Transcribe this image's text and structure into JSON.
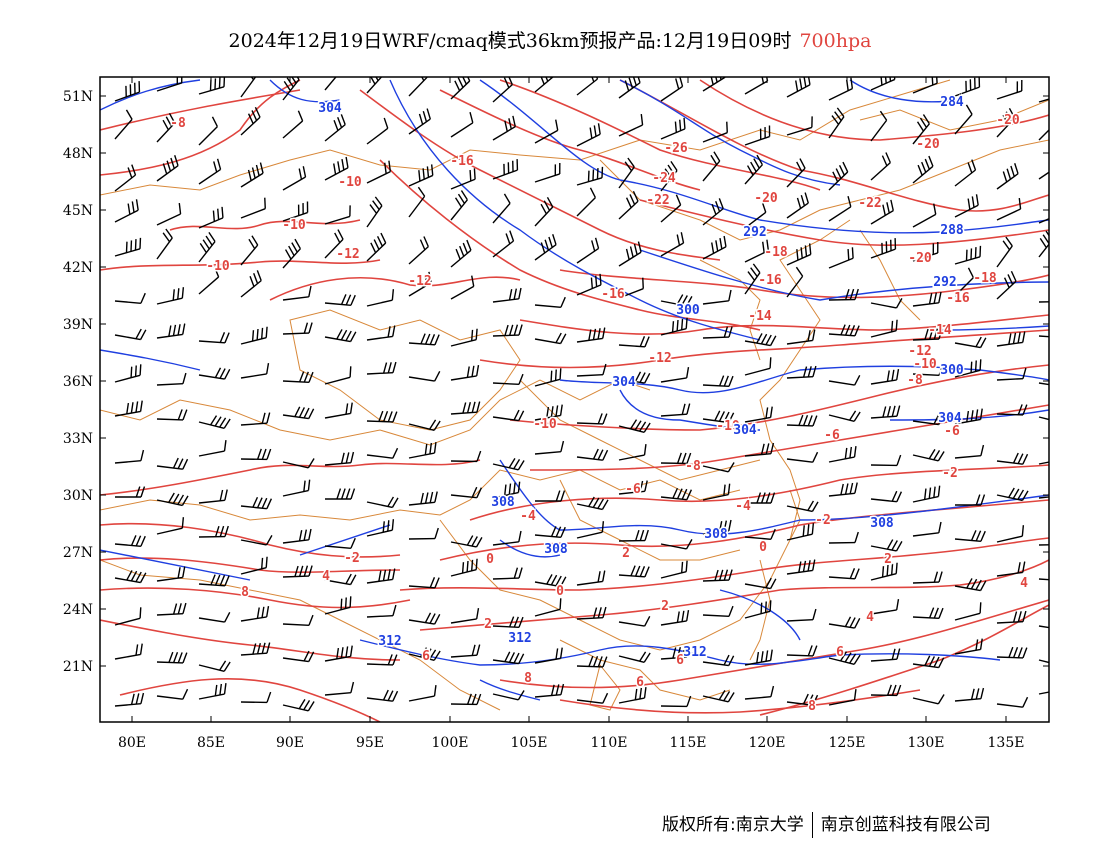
{
  "title": {
    "text": "2024年12月19日WRF/cmaq模式36km预报产品:12月19日09时",
    "level": "700hpa",
    "level_color": "#e0453f"
  },
  "axes": {
    "lon_labels": [
      "80E",
      "85E",
      "90E",
      "95E",
      "100E",
      "105E",
      "110E",
      "115E",
      "120E",
      "125E",
      "130E",
      "135E"
    ],
    "lat_labels": [
      "51N",
      "48N",
      "45N",
      "42N",
      "39N",
      "36N",
      "33N",
      "30N",
      "27N",
      "24N",
      "21N"
    ]
  },
  "colors": {
    "temperature": "#e0453f",
    "height": "#1f3fe0",
    "border": "#d8883a",
    "wind": "#000000"
  },
  "temperature_labels": [
    "-8",
    "-10",
    "-10",
    "-10",
    "-12",
    "-12",
    "-16",
    "-16",
    "-20",
    "-20",
    "-20",
    "-22",
    "-22",
    "-24",
    "-26",
    "-20",
    "-18",
    "-18",
    "-16",
    "-16",
    "-14",
    "-14",
    "-12",
    "-12",
    "-10",
    "-10",
    "-10",
    "-8",
    "-8",
    "-6",
    "-6",
    "-6",
    "-4",
    "-4",
    "-2",
    "-2",
    "-2",
    "0",
    "0",
    "0",
    "2",
    "2",
    "2",
    "2",
    "4",
    "4",
    "4",
    "6",
    "6",
    "6",
    "6",
    "8",
    "8",
    "8"
  ],
  "height_labels": [
    "304",
    "284",
    "292",
    "288",
    "292",
    "300",
    "304",
    "304",
    "300",
    "304",
    "308",
    "308",
    "308",
    "308",
    "312",
    "312",
    "312"
  ],
  "footer": {
    "left": "版权所有:南京大学",
    "right": "南京创蓝科技有限公司"
  }
}
